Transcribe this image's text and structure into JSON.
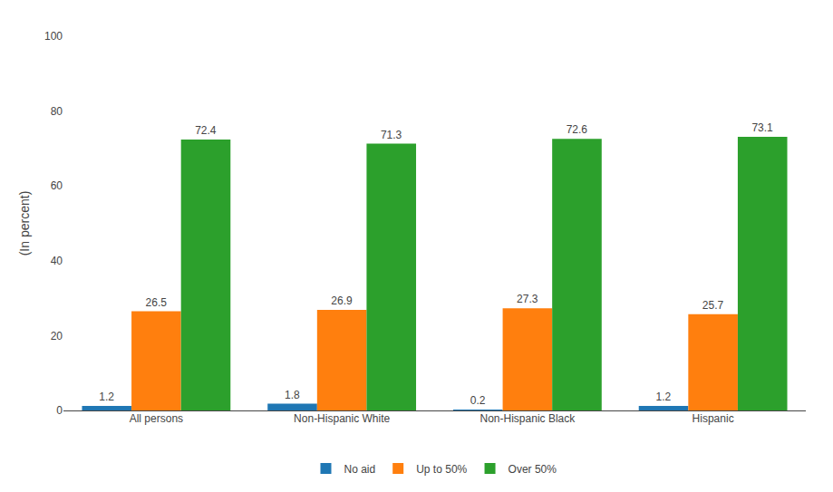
{
  "chart_data": {
    "type": "bar",
    "ylabel": "(In percent)",
    "categories": [
      "All persons",
      "Non-Hispanic White",
      "Non-Hispanic Black",
      "Hispanic"
    ],
    "series": [
      {
        "name": "No aid",
        "values": [
          1.2,
          1.8,
          0.2,
          1.2
        ]
      },
      {
        "name": "Up to 50%",
        "values": [
          26.5,
          26.9,
          27.3,
          25.7
        ]
      },
      {
        "name": "Over 50%",
        "values": [
          72.4,
          71.3,
          72.6,
          73.1
        ]
      }
    ],
    "ylim": [
      0,
      100
    ],
    "yticks": [
      0,
      20,
      40,
      60,
      80,
      100
    ],
    "grid": false,
    "legend": "bottom",
    "data_labels": true
  }
}
